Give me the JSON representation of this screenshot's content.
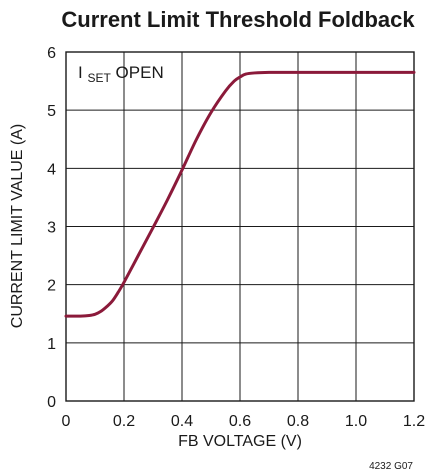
{
  "chart_data": {
    "type": "line",
    "title": "Current Limit Threshold Foldback",
    "xlabel": "FB VOLTAGE (V)",
    "ylabel": "CURRENT LIMIT VALUE (A)",
    "xlim": [
      0,
      1.2
    ],
    "ylim": [
      0,
      6
    ],
    "x_ticks": [
      0,
      0.2,
      0.4,
      0.6,
      0.8,
      1.0,
      1.2
    ],
    "x_tick_labels": [
      "0",
      "0.2",
      "0.4",
      "0.6",
      "0.8",
      "1.0",
      "1.2"
    ],
    "y_ticks": [
      0,
      1,
      2,
      3,
      4,
      5,
      6
    ],
    "y_tick_labels": [
      "0",
      "1",
      "2",
      "3",
      "4",
      "5",
      "6"
    ],
    "grid": true,
    "annotation": {
      "prefix": "I",
      "subscript": "SET",
      "suffix": " OPEN"
    },
    "figure_id": "4232 G07",
    "series": [
      {
        "color": "#8b1a3a",
        "x": [
          0,
          0.05,
          0.08,
          0.1,
          0.12,
          0.14,
          0.16,
          0.18,
          0.2,
          0.25,
          0.3,
          0.35,
          0.4,
          0.45,
          0.5,
          0.55,
          0.58,
          0.6,
          0.62,
          0.65,
          0.7,
          0.8,
          0.9,
          1.0,
          1.1,
          1.2
        ],
        "y": [
          1.46,
          1.46,
          1.47,
          1.49,
          1.54,
          1.62,
          1.72,
          1.87,
          2.04,
          2.51,
          2.98,
          3.46,
          3.97,
          4.5,
          4.96,
          5.33,
          5.5,
          5.57,
          5.62,
          5.64,
          5.65,
          5.65,
          5.65,
          5.65,
          5.65,
          5.65
        ]
      }
    ]
  }
}
